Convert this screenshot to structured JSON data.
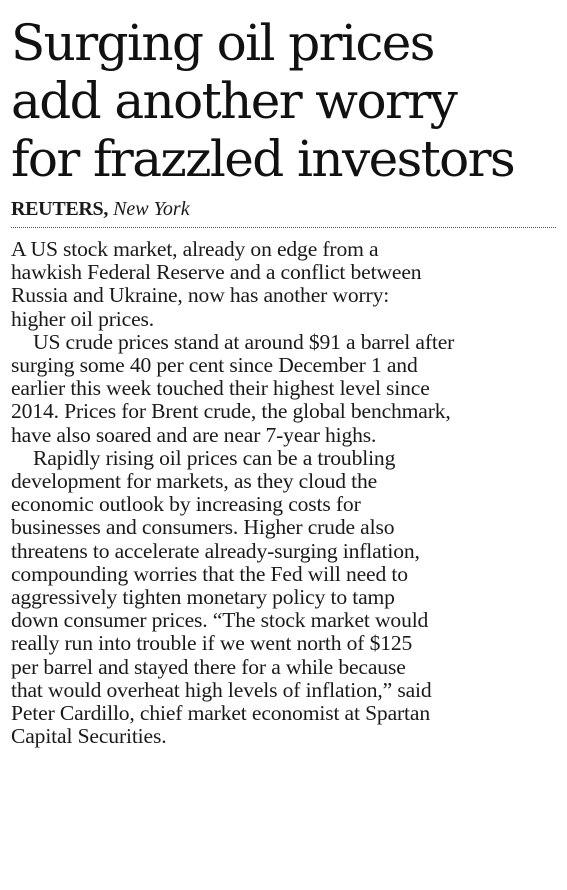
{
  "headline": {
    "lines": [
      "Surging oil prices",
      "add another worry",
      "for frazzled investors"
    ]
  },
  "byline": {
    "agency": "REUTERS,",
    "location": "New York"
  },
  "body": {
    "lines": [
      "A US stock market, already on edge from a",
      "hawkish Federal Reserve and a conflict between",
      "Russia and Ukraine, now has another worry:",
      "higher oil prices.",
      "US crude prices stand at around $91 a barrel after",
      "surging some 40 per cent since December 1 and",
      "earlier this week touched their highest level since",
      "2014. Prices for Brent crude, the global benchmark,",
      "have also soared and are near 7-year highs.",
      "Rapidly rising oil prices can be a troubling",
      "development for markets, as they cloud the",
      "economic outlook by increasing costs for",
      "businesses and consumers. Higher crude also",
      "threatens to accelerate already-surging inflation,",
      "compounding worries that the Fed will need to",
      "aggressively tighten monetary policy to tamp",
      "down consumer prices. “The stock market would",
      "really run into trouble if we went north of $125",
      "per barrel and stayed there for a while because",
      "that would overheat high levels of inflation,” said",
      "Peter Cardillo, chief market economist at Spartan",
      "Capital Securities."
    ]
  }
}
